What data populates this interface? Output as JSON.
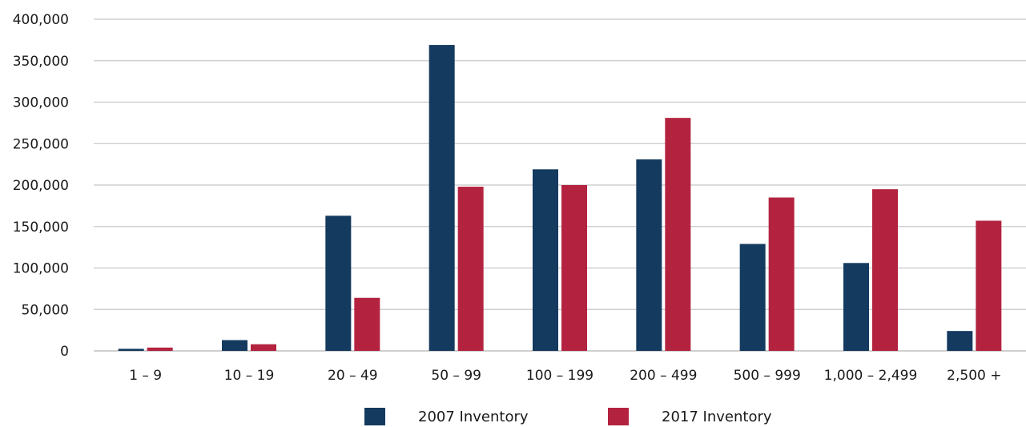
{
  "chart_data": {
    "type": "bar",
    "categories": [
      "1 – 9",
      "10 – 19",
      "20 – 49",
      "50 – 99",
      "100 – 199",
      "200 – 499",
      "500 – 999",
      "1,000 – 2,499",
      "2,500 +"
    ],
    "series": [
      {
        "name": "2007 Inventory",
        "color": "#143a5f",
        "values": [
          2500,
          13000,
          163000,
          369000,
          219000,
          231000,
          129000,
          106000,
          24000
        ]
      },
      {
        "name": "2017 Inventory",
        "color": "#b3233f",
        "values": [
          4000,
          8000,
          64000,
          198000,
          200000,
          281000,
          185000,
          195000,
          157000
        ]
      }
    ],
    "title": "",
    "xlabel": "",
    "ylabel": "",
    "ylim": [
      0,
      400000
    ],
    "yticks": [
      "0",
      "50,000",
      "100,000",
      "150,000",
      "200,000",
      "250,000",
      "300,000",
      "350,000",
      "400,000"
    ],
    "grid": true,
    "legend_position": "bottom"
  }
}
